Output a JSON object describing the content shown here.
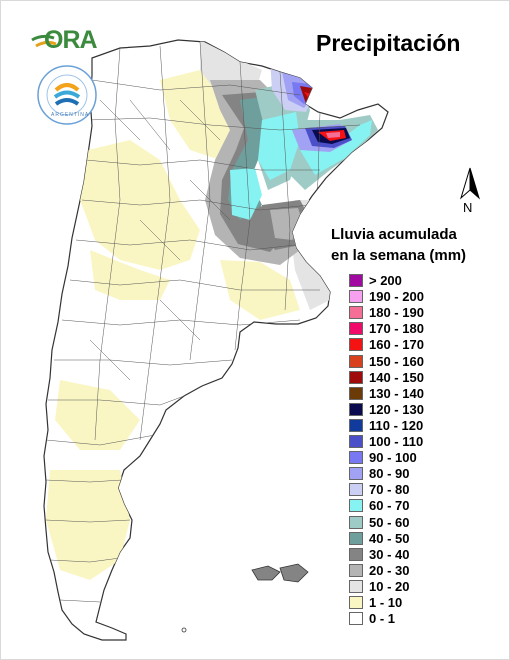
{
  "title": "Precipitación",
  "logo": {
    "text": "ORA"
  },
  "seal": {
    "text": "ARGENTINA"
  },
  "north_label": "N",
  "legend": {
    "title_line1": "Lluvia acumulada",
    "title_line2": "en la semana (mm)",
    "items": [
      {
        "label": "> 200",
        "color": "#a10aa0"
      },
      {
        "label": "190 - 200",
        "color": "#f7a0f0"
      },
      {
        "label": "180 - 190",
        "color": "#f46e96"
      },
      {
        "label": "170 - 180",
        "color": "#f00a6a"
      },
      {
        "label": "160 - 170",
        "color": "#f51212"
      },
      {
        "label": "150 - 160",
        "color": "#d8401e"
      },
      {
        "label": "140 - 150",
        "color": "#9f0b0b"
      },
      {
        "label": "130 - 140",
        "color": "#6b3a07"
      },
      {
        "label": "120 - 130",
        "color": "#0a0a4f"
      },
      {
        "label": "110 - 120",
        "color": "#103a9b"
      },
      {
        "label": "100 - 110",
        "color": "#4b4fc8"
      },
      {
        "label": "90 - 100",
        "color": "#7878f2"
      },
      {
        "label": "80 - 90",
        "color": "#a2a2f5"
      },
      {
        "label": "70 - 80",
        "color": "#cccff4"
      },
      {
        "label": "60 - 70",
        "color": "#86f3f2"
      },
      {
        "label": "50 - 60",
        "color": "#9ecbc5"
      },
      {
        "label": "40 - 50",
        "color": "#6f9f9c"
      },
      {
        "label": "30 - 40",
        "color": "#848484"
      },
      {
        "label": "20 - 30",
        "color": "#b4b4b4"
      },
      {
        "label": "10 - 20",
        "color": "#e4e4e4"
      },
      {
        "label": "1 - 10",
        "color": "#faf6c4"
      },
      {
        "label": "0 - 1",
        "color": "#ffffff"
      }
    ]
  }
}
